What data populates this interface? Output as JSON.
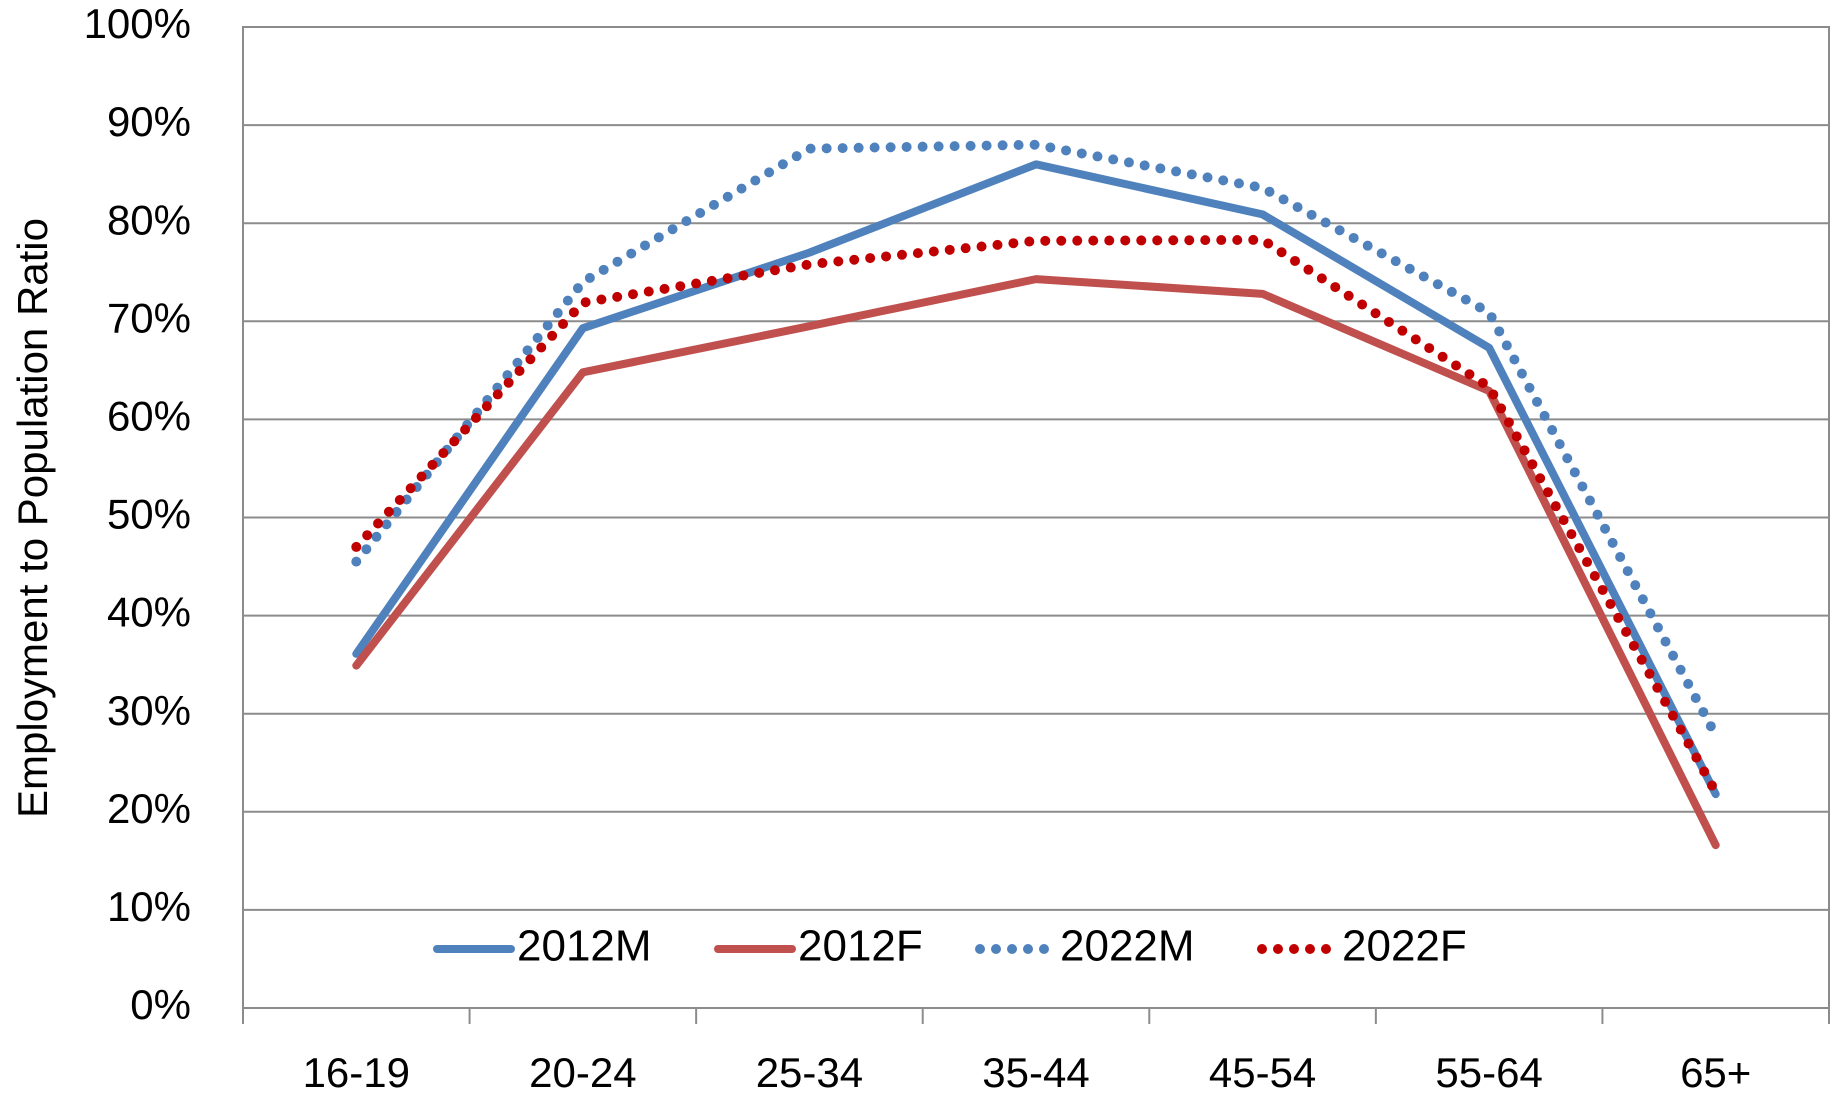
{
  "chart_data": {
    "type": "line",
    "y_label": "Employment to Population Ratio",
    "categories": [
      "16-19",
      "20-24",
      "25-34",
      "35-44",
      "45-54",
      "55-64",
      "65+"
    ],
    "series": [
      {
        "name": "2012M",
        "color": "#4f81bd",
        "style": "solid",
        "values": [
          36.1,
          69.3,
          77.0,
          86.0,
          80.9,
          67.3,
          21.8
        ]
      },
      {
        "name": "2012F",
        "color": "#c0504d",
        "style": "solid",
        "values": [
          34.9,
          64.8,
          69.5,
          74.3,
          72.8,
          62.9,
          16.6
        ]
      },
      {
        "name": "2022M",
        "color": "#4f81bd",
        "style": "dotted",
        "values": [
          45.5,
          74.0,
          87.6,
          88.0,
          83.6,
          70.9,
          27.8
        ]
      },
      {
        "name": "2022F",
        "color": "#c00000",
        "style": "dotted",
        "values": [
          47.0,
          71.9,
          75.8,
          78.2,
          78.3,
          63.3,
          22.0
        ]
      }
    ],
    "ylim": [
      0,
      100
    ],
    "yticks": [
      {
        "value": 0,
        "label": "0%"
      },
      {
        "value": 10,
        "label": "10%"
      },
      {
        "value": 20,
        "label": "20%"
      },
      {
        "value": 30,
        "label": "30%"
      },
      {
        "value": 40,
        "label": "40%"
      },
      {
        "value": 50,
        "label": "50%"
      },
      {
        "value": 60,
        "label": "60%"
      },
      {
        "value": 70,
        "label": "70%"
      },
      {
        "value": 80,
        "label": "80%"
      },
      {
        "value": 90,
        "label": "90%"
      },
      {
        "value": 100,
        "label": "100%"
      }
    ],
    "grid": true,
    "legend": "bottom"
  }
}
